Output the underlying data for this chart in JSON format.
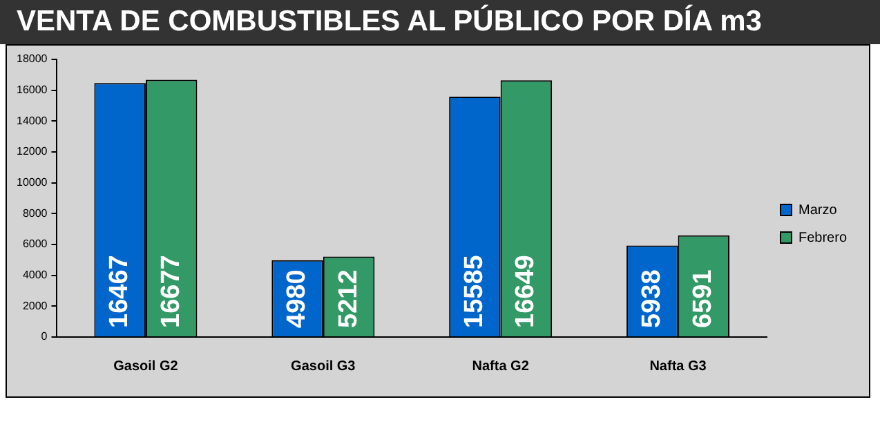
{
  "chart_data": {
    "type": "bar",
    "title": "VENTA DE COMBUSTIBLES AL PÚBLICO POR DÍA m3",
    "categories": [
      "Gasoil G2",
      "Gasoil G3",
      "Nafta G2",
      "Nafta G3"
    ],
    "series": [
      {
        "name": "Marzo",
        "color": "#0066cc",
        "values": [
          16467,
          4980,
          15585,
          5938
        ]
      },
      {
        "name": "Febrero",
        "color": "#339966",
        "values": [
          16677,
          5212,
          16649,
          6591
        ]
      }
    ],
    "ylim": [
      0,
      18000
    ],
    "yticks": [
      0,
      2000,
      4000,
      6000,
      8000,
      10000,
      12000,
      14000,
      16000,
      18000
    ],
    "grid": false,
    "legend": "right",
    "data_labels": true
  }
}
